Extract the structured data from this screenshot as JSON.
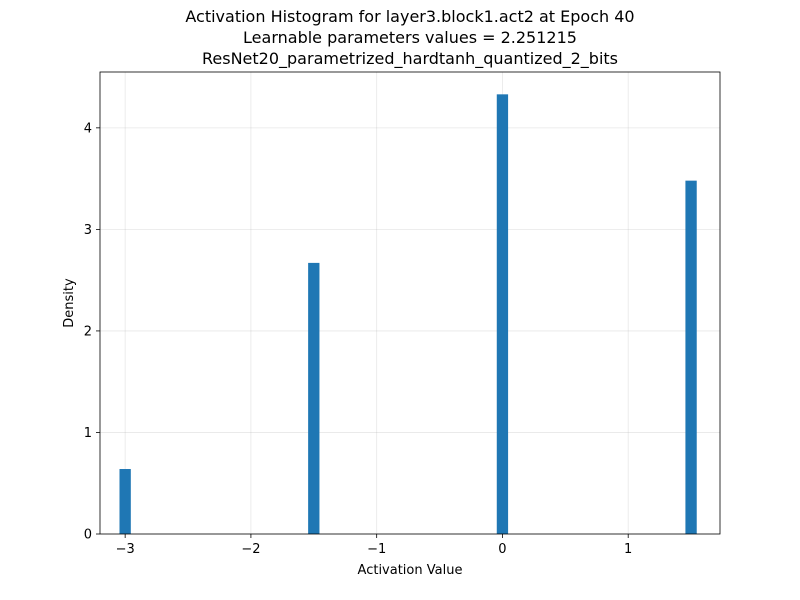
{
  "chart_data": {
    "type": "bar",
    "title": [
      "Activation Histogram for layer3.block1.act2 at Epoch 40",
      "Learnable parameters values = 2.251215",
      "ResNet20_parametrized_hardtanh_quantized_2_bits"
    ],
    "xlabel": "Activation Value",
    "ylabel": "Density",
    "xlim": [
      -3.2,
      1.73
    ],
    "ylim": [
      0,
      4.55
    ],
    "xticks": [
      -3,
      -2,
      -1,
      0,
      1
    ],
    "xtick_labels": [
      "−3",
      "−2",
      "−1",
      "0",
      "1"
    ],
    "yticks": [
      0,
      1,
      2,
      3,
      4
    ],
    "ytick_labels": [
      "0",
      "1",
      "2",
      "3",
      "4"
    ],
    "bin_width": 0.09,
    "bars": [
      {
        "x": -3.0,
        "value": 0.64
      },
      {
        "x": -1.5,
        "value": 2.67
      },
      {
        "x": 0.0,
        "value": 4.33
      },
      {
        "x": 1.5,
        "value": 3.48
      }
    ],
    "grid": true,
    "bar_color": "#1f77b4"
  }
}
